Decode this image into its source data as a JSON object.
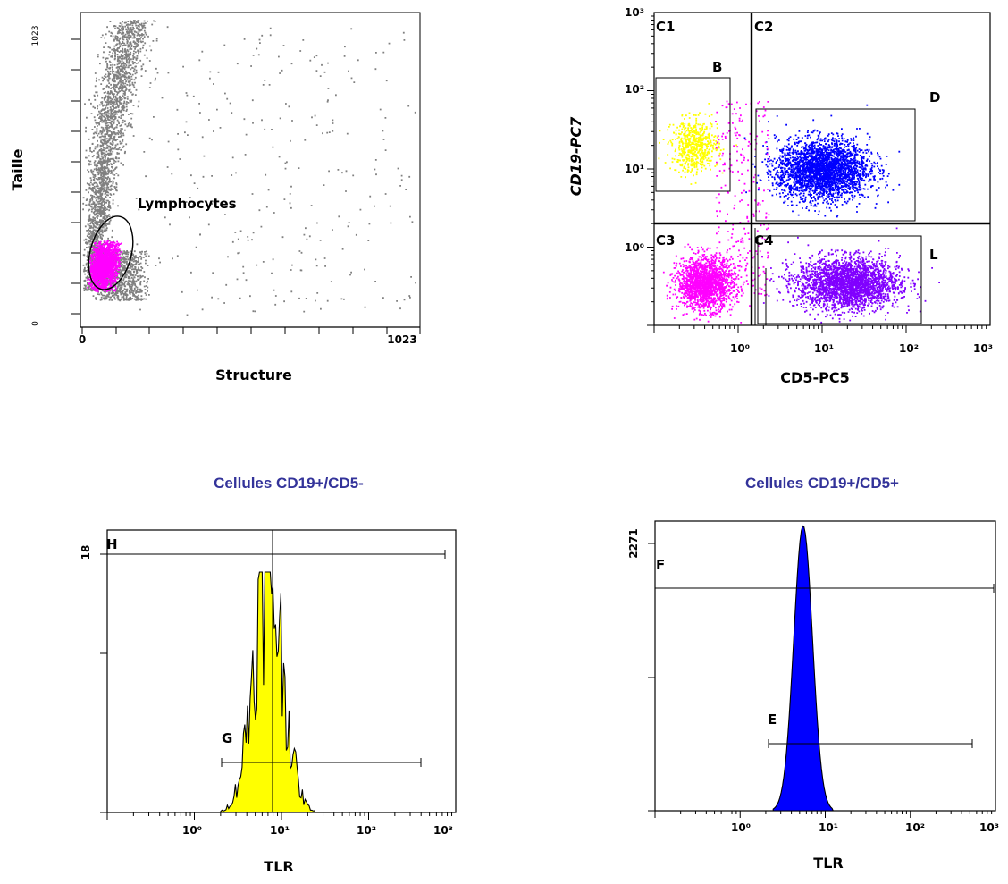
{
  "chart_data": [
    {
      "type": "scatter",
      "xlabel": "Structure",
      "ylabel": "Taille",
      "xlim": [
        0,
        1023
      ],
      "ylim": [
        0,
        1023
      ],
      "x_tick_labels": [
        "0",
        "1023"
      ],
      "y_tick_labels": [
        "1023",
        "0"
      ],
      "gates": [
        {
          "name": "Lymphocytes",
          "shape": "ellipse",
          "color": "#ff00ff"
        }
      ],
      "populations": [
        {
          "name": "Lymphocytes",
          "color": "#ff00ff",
          "center": [
            70,
            200
          ],
          "spread": [
            40,
            95
          ]
        },
        {
          "color": "#808080",
          "center": [
            110,
            520
          ],
          "spread": [
            120,
            500
          ]
        }
      ]
    },
    {
      "type": "scatter",
      "xlabel": "CD5-PC5",
      "ylabel": "CD19-PC7",
      "xscale": "log",
      "yscale": "log",
      "xlim": [
        0.1,
        1000
      ],
      "ylim": [
        0.1,
        1000
      ],
      "x_tick_labels": [
        "10⁰",
        "10¹",
        "10²",
        "10³"
      ],
      "y_tick_labels": [
        "10³",
        "10²",
        "10¹",
        "10⁰"
      ],
      "quadrants": [
        "C1",
        "C2",
        "C3",
        "C4"
      ],
      "gates": [
        "B",
        "D",
        "L"
      ],
      "populations": [
        {
          "name": "B",
          "color": "#ffff00",
          "center": [
            0.3,
            20
          ],
          "spread_decades": [
            0.25,
            0.3
          ]
        },
        {
          "name": "D",
          "color": "#0000ff",
          "center": [
            10,
            10
          ],
          "spread_decades": [
            0.5,
            0.35
          ]
        },
        {
          "name": "C3",
          "color": "#ff00ff",
          "center": [
            0.4,
            0.35
          ],
          "spread_decades": [
            0.3,
            0.3
          ]
        },
        {
          "name": "L",
          "color": "#8000ff",
          "center": [
            20,
            0.35
          ],
          "spread_decades": [
            0.55,
            0.3
          ]
        }
      ]
    },
    {
      "type": "area",
      "title": "Cellules CD19+/CD5-",
      "xlabel": "TLR",
      "xscale": "log",
      "xlim": [
        0.1,
        1000
      ],
      "ylim": [
        0,
        18
      ],
      "y_tick_labels": [
        "18"
      ],
      "x_tick_labels": [
        "10⁰",
        "10¹",
        "10²",
        "10³"
      ],
      "fill": "#ffff00",
      "peak_x": 7,
      "gates": [
        "H",
        "G"
      ]
    },
    {
      "type": "area",
      "title": "Cellules CD19+/CD5+",
      "xlabel": "TLR",
      "xscale": "log",
      "xlim": [
        0.1,
        1000
      ],
      "ylim": [
        0,
        2271
      ],
      "y_tick_labels": [
        "2271"
      ],
      "x_tick_labels": [
        "10⁰",
        "10¹",
        "10²",
        "10³"
      ],
      "fill": "#0000ff",
      "peak_x": 5.5,
      "gates": [
        "F",
        "E"
      ]
    }
  ],
  "colors": {
    "title": "#33339a",
    "grey_events": "#808080"
  }
}
